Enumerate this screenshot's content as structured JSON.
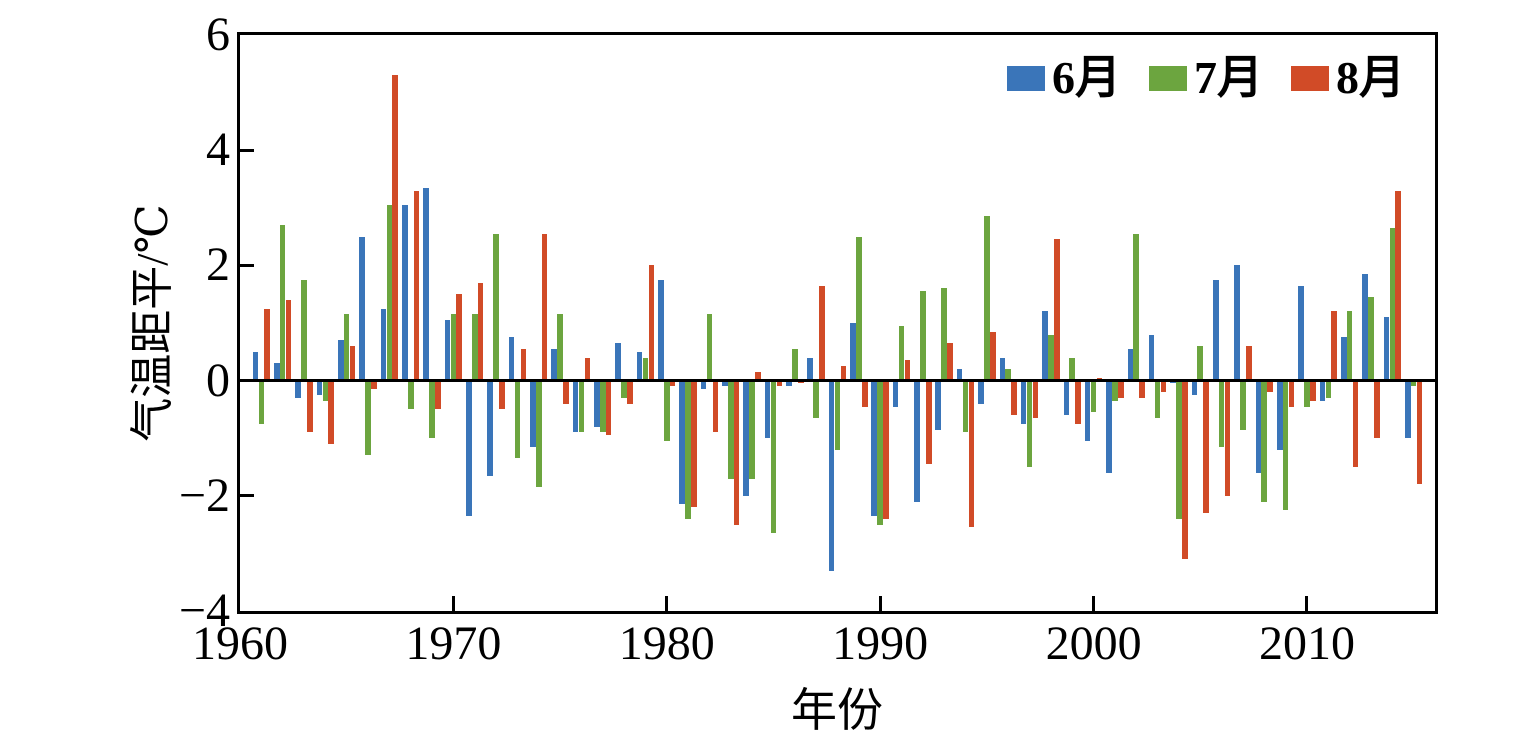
{
  "figure": {
    "y_axis_title": "气温距平/℃",
    "x_axis_title": "年份"
  },
  "legend": {
    "items": [
      {
        "label": "6月",
        "color": "#3A75B9"
      },
      {
        "label": "7月",
        "color": "#6CA53F"
      },
      {
        "label": "8月",
        "color": "#D14B27"
      }
    ]
  },
  "chart_data": {
    "type": "bar",
    "title": "",
    "xlabel": "年份",
    "ylabel": "气温距平/℃",
    "grid": false,
    "legend_position": "top-right-inside",
    "ylim": [
      -4,
      6
    ],
    "x_range": [
      1960,
      2016
    ],
    "y_ticks": [
      6,
      4,
      2,
      0,
      -2,
      -4
    ],
    "y_tick_labels": [
      "6",
      "4",
      "2",
      "0",
      "−2",
      "−4"
    ],
    "x_tick_years": [
      1960,
      1970,
      1980,
      1990,
      2000,
      2010
    ],
    "x_tick_labels": [
      "1960",
      "1970",
      "1980",
      "1990",
      "2000",
      "2010"
    ],
    "years": [
      1961,
      1962,
      1963,
      1964,
      1965,
      1966,
      1967,
      1968,
      1969,
      1970,
      1971,
      1972,
      1973,
      1974,
      1975,
      1976,
      1977,
      1978,
      1979,
      1980,
      1981,
      1982,
      1983,
      1984,
      1985,
      1986,
      1987,
      1988,
      1989,
      1990,
      1991,
      1992,
      1993,
      1994,
      1995,
      1996,
      1997,
      1998,
      1999,
      2000,
      2001,
      2002,
      2003,
      2004,
      2005,
      2006,
      2007,
      2008,
      2009,
      2010,
      2011,
      2012,
      2013,
      2014,
      2015
    ],
    "series": [
      {
        "name": "6月",
        "color": "#3A75B9",
        "values": [
          0.5,
          0.3,
          -0.3,
          -0.25,
          0.7,
          2.5,
          1.25,
          3.05,
          3.35,
          1.05,
          -2.35,
          -1.65,
          0.75,
          -1.15,
          0.55,
          -0.9,
          -0.8,
          0.65,
          0.5,
          1.75,
          -2.15,
          -0.15,
          -0.1,
          -2.0,
          -1.0,
          -0.1,
          0.4,
          -3.3,
          1.0,
          -2.35,
          -0.45,
          -2.1,
          -0.85,
          0.2,
          -0.4,
          0.4,
          -0.75,
          1.2,
          -0.6,
          -1.05,
          -1.6,
          0.55,
          0.8,
          -0.05,
          -0.25,
          1.75,
          2.0,
          -1.6,
          -1.2,
          1.65,
          -0.35,
          0.75,
          1.85,
          1.1,
          -1.0
        ]
      },
      {
        "name": "7月",
        "color": "#6CA53F",
        "values": [
          -0.75,
          2.7,
          1.75,
          -0.35,
          1.15,
          -1.3,
          3.05,
          -0.5,
          -1.0,
          1.15,
          1.15,
          2.55,
          -1.35,
          -1.85,
          1.15,
          -0.9,
          -0.9,
          -0.3,
          0.4,
          -1.05,
          -2.4,
          1.15,
          -1.7,
          -1.7,
          -2.65,
          0.55,
          -0.65,
          -1.2,
          2.5,
          -2.5,
          0.95,
          1.55,
          1.6,
          -0.9,
          2.85,
          0.2,
          -1.5,
          0.8,
          0.4,
          -0.55,
          -0.35,
          2.55,
          -0.65,
          -2.4,
          0.6,
          -1.15,
          -0.85,
          -2.1,
          -2.25,
          -0.45,
          -0.3,
          1.2,
          1.45,
          2.65,
          -0.1
        ]
      },
      {
        "name": "8月",
        "color": "#D14B27",
        "values": [
          1.25,
          1.4,
          -0.9,
          -1.1,
          0.6,
          -0.15,
          5.3,
          3.3,
          -0.5,
          1.5,
          1.7,
          -0.5,
          0.55,
          2.55,
          -0.4,
          0.4,
          -0.95,
          -0.4,
          2.0,
          -0.1,
          -2.2,
          -0.9,
          -2.5,
          0.15,
          -0.1,
          -0.05,
          1.65,
          0.25,
          -0.45,
          -2.4,
          0.35,
          -1.45,
          0.65,
          -2.55,
          0.85,
          -0.6,
          -0.65,
          2.45,
          -0.75,
          0.05,
          -0.3,
          -0.3,
          -0.2,
          -3.1,
          -2.3,
          -2.0,
          0.6,
          -0.2,
          -0.45,
          -0.35,
          1.2,
          -1.5,
          -1.0,
          3.3,
          -1.8
        ]
      }
    ]
  }
}
